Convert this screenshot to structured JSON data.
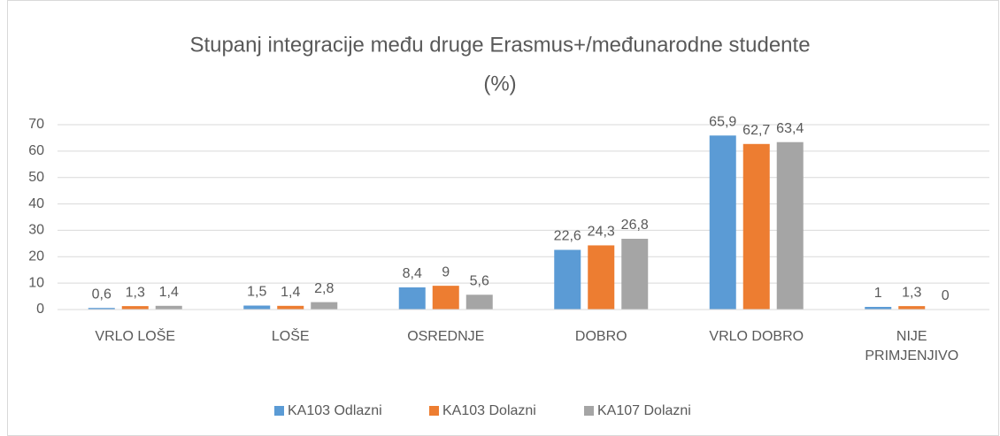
{
  "chart_data": {
    "type": "bar",
    "title": [
      "Stupanj integracije među druge Erasmus+/međunarodne studente",
      "(%)"
    ],
    "categories": [
      "VRLO LOŠE",
      "LOŠE",
      "OSREDNJE",
      "DOBRO",
      "VRLO DOBRO",
      "NIJE PRIMJENJIVO"
    ],
    "series": [
      {
        "name": "KA103 Odlazni",
        "color": "#5b9bd5",
        "values": [
          0.6,
          1.5,
          8.4,
          22.6,
          65.9,
          1
        ],
        "value_labels": [
          "0,6",
          "1,5",
          "8,4",
          "22,6",
          "65,9",
          "1"
        ]
      },
      {
        "name": "KA103 Dolazni",
        "color": "#ed7d31",
        "values": [
          1.3,
          1.4,
          9,
          24.3,
          62.7,
          1.3
        ],
        "value_labels": [
          "1,3",
          "1,4",
          "9",
          "24,3",
          "62,7",
          "1,3"
        ]
      },
      {
        "name": "KA107 Dolazni",
        "color": "#a5a5a5",
        "values": [
          1.4,
          2.8,
          5.6,
          26.8,
          63.4,
          0
        ],
        "value_labels": [
          "1,4",
          "2,8",
          "5,6",
          "26,8",
          "63,4",
          "0"
        ]
      }
    ],
    "ylim": [
      0,
      70
    ],
    "yticks": [
      0,
      10,
      20,
      30,
      40,
      50,
      60,
      70
    ],
    "grid": true,
    "legend": "bottom"
  }
}
